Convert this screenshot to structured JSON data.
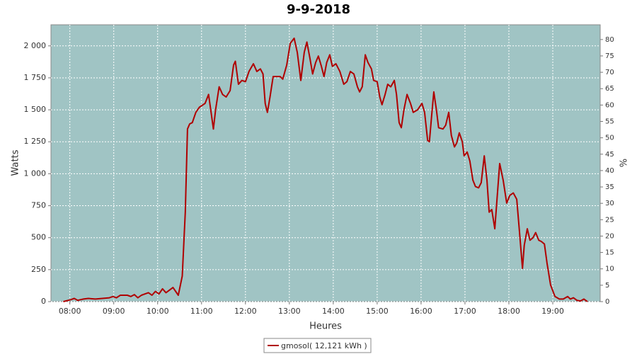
{
  "chart_data": {
    "type": "line",
    "title": "9-9-2018",
    "y_label": "Watts",
    "y2_label": "%",
    "x_label": "Heures",
    "grid": true,
    "legend": "bottom",
    "xlim": [
      7.57,
      20.08
    ],
    "ylim": [
      0,
      2165
    ],
    "y2lim": [
      0,
      84.5
    ],
    "xticks": [
      {
        "value": 8,
        "label": "08:00"
      },
      {
        "value": 9,
        "label": "09:00"
      },
      {
        "value": 10,
        "label": "10:00"
      },
      {
        "value": 11,
        "label": "11:00"
      },
      {
        "value": 12,
        "label": "12:00"
      },
      {
        "value": 13,
        "label": "13:00"
      },
      {
        "value": 14,
        "label": "14:00"
      },
      {
        "value": 15,
        "label": "15:00"
      },
      {
        "value": 16,
        "label": "16:00"
      },
      {
        "value": 17,
        "label": "17:00"
      },
      {
        "value": 18,
        "label": "18:00"
      },
      {
        "value": 19,
        "label": "19:00"
      }
    ],
    "yticks": [
      0,
      250,
      500,
      750,
      {
        "value": 1000,
        "label": "1 000"
      },
      {
        "value": 1250,
        "label": "1 250"
      },
      {
        "value": 1500,
        "label": "1 500"
      },
      {
        "value": 1750,
        "label": "1 750"
      },
      {
        "value": 2000,
        "label": "2 000"
      }
    ],
    "y2ticks": [
      0,
      5,
      10,
      15,
      20,
      25,
      30,
      35,
      40,
      45,
      50,
      55,
      60,
      65,
      70,
      75,
      80
    ],
    "x": [
      7.85,
      8.02,
      8.1,
      8.18,
      8.31,
      8.42,
      8.58,
      8.74,
      8.9,
      8.98,
      9.06,
      9.15,
      9.31,
      9.39,
      9.47,
      9.55,
      9.63,
      9.71,
      9.79,
      9.87,
      9.95,
      10.03,
      10.11,
      10.19,
      10.35,
      10.47,
      10.56,
      10.63,
      10.68,
      10.73,
      10.79,
      10.87,
      10.95,
      11.08,
      11.16,
      11.23,
      11.27,
      11.32,
      11.4,
      11.48,
      11.56,
      11.65,
      11.73,
      11.77,
      11.84,
      11.92,
      12.0,
      12.08,
      12.18,
      12.26,
      12.34,
      12.4,
      12.45,
      12.5,
      12.56,
      12.63,
      12.73,
      12.79,
      12.85,
      12.94,
      13.02,
      13.11,
      13.18,
      13.26,
      13.34,
      13.4,
      13.47,
      13.53,
      13.6,
      13.66,
      13.73,
      13.79,
      13.85,
      13.92,
      13.98,
      14.06,
      14.15,
      14.24,
      14.31,
      14.39,
      14.47,
      14.55,
      14.6,
      14.66,
      14.73,
      14.79,
      14.87,
      14.92,
      15.0,
      15.06,
      15.11,
      15.18,
      15.24,
      15.31,
      15.39,
      15.44,
      15.5,
      15.55,
      15.61,
      15.68,
      15.76,
      15.82,
      15.92,
      16.02,
      16.08,
      16.15,
      16.19,
      16.24,
      16.29,
      16.35,
      16.4,
      16.5,
      16.56,
      16.63,
      16.69,
      16.76,
      16.81,
      16.87,
      16.94,
      16.98,
      17.05,
      17.11,
      17.18,
      17.24,
      17.31,
      17.37,
      17.44,
      17.5,
      17.55,
      17.61,
      17.68,
      17.73,
      17.79,
      17.87,
      17.95,
      18.02,
      18.1,
      18.18,
      18.24,
      18.31,
      18.35,
      18.42,
      18.48,
      18.55,
      18.61,
      18.68,
      18.74,
      18.81,
      18.87,
      18.95,
      19.05,
      19.15,
      19.24,
      19.34,
      19.4,
      19.47,
      19.55,
      19.63,
      19.71,
      19.79
    ],
    "series": [
      {
        "name": "gmosol( 12,121 kWh )",
        "color": "#b00000",
        "values": [
          0,
          15,
          25,
          10,
          20,
          25,
          20,
          25,
          30,
          40,
          30,
          50,
          50,
          40,
          55,
          30,
          50,
          60,
          70,
          50,
          80,
          60,
          100,
          70,
          110,
          50,
          200,
          700,
          1350,
          1390,
          1400,
          1480,
          1520,
          1550,
          1620,
          1450,
          1350,
          1500,
          1680,
          1620,
          1600,
          1650,
          1850,
          1880,
          1700,
          1730,
          1720,
          1800,
          1860,
          1800,
          1820,
          1780,
          1550,
          1480,
          1600,
          1760,
          1760,
          1760,
          1740,
          1850,
          2020,
          2060,
          1950,
          1730,
          1950,
          2030,
          1900,
          1780,
          1870,
          1920,
          1840,
          1760,
          1870,
          1930,
          1840,
          1860,
          1800,
          1700,
          1720,
          1800,
          1780,
          1680,
          1640,
          1680,
          1930,
          1870,
          1820,
          1730,
          1720,
          1600,
          1540,
          1620,
          1700,
          1680,
          1730,
          1620,
          1400,
          1360,
          1500,
          1620,
          1550,
          1480,
          1500,
          1550,
          1480,
          1260,
          1250,
          1450,
          1640,
          1500,
          1360,
          1350,
          1380,
          1480,
          1300,
          1210,
          1240,
          1320,
          1250,
          1140,
          1170,
          1100,
          950,
          900,
          890,
          930,
          1140,
          950,
          700,
          720,
          570,
          800,
          1080,
          950,
          770,
          830,
          850,
          800,
          550,
          260,
          440,
          570,
          480,
          500,
          540,
          480,
          470,
          450,
          300,
          130,
          40,
          20,
          20,
          40,
          20,
          30,
          10,
          5,
          20,
          0
        ]
      }
    ]
  }
}
